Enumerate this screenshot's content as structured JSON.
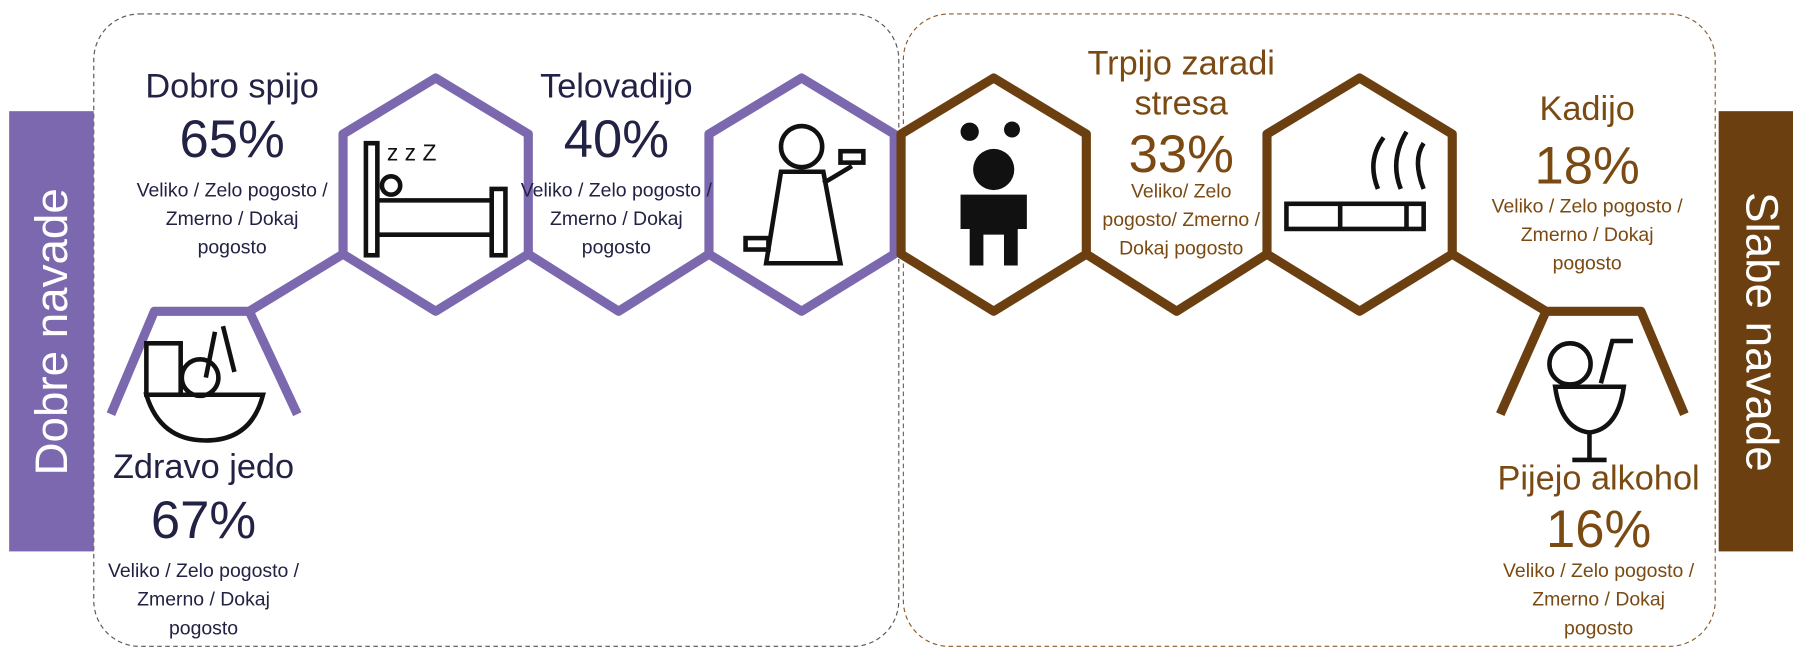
{
  "sidebars": {
    "left": "Dobre navade",
    "right": "Slabe navade"
  },
  "items": [
    {
      "title": [
        "Dobro spijo"
      ],
      "percent": "65%",
      "description": [
        "Veliko / Zelo pogosto /",
        "Zmerno / Dokaj",
        "pogosto"
      ]
    },
    {
      "title": [
        "Telovadijo"
      ],
      "percent": "40%",
      "description": [
        "Veliko / Zelo pogosto /",
        "Zmerno / Dokaj",
        "pogosto"
      ]
    },
    {
      "title": [
        "Zdravo jedo"
      ],
      "percent": "67%",
      "description": [
        "Veliko / Zelo pogosto /",
        "Zmerno / Dokaj",
        "pogosto"
      ]
    },
    {
      "title": [
        "Trpijo zaradi",
        "stresa"
      ],
      "percent": "33%",
      "description": [
        "Veliko/ Zelo",
        "pogosto/ Zmerno /",
        "Dokaj pogosto"
      ]
    },
    {
      "title": [
        "Kadijo"
      ],
      "percent": "18%",
      "description": [
        "Veliko / Zelo pogosto /",
        "Zmerno / Dokaj",
        "pogosto"
      ]
    },
    {
      "title": [
        "Pijejo alkohol"
      ],
      "percent": "16%",
      "description": [
        "Veliko / Zelo pogosto /",
        "Zmerno / Dokaj",
        "pogosto"
      ]
    }
  ]
}
